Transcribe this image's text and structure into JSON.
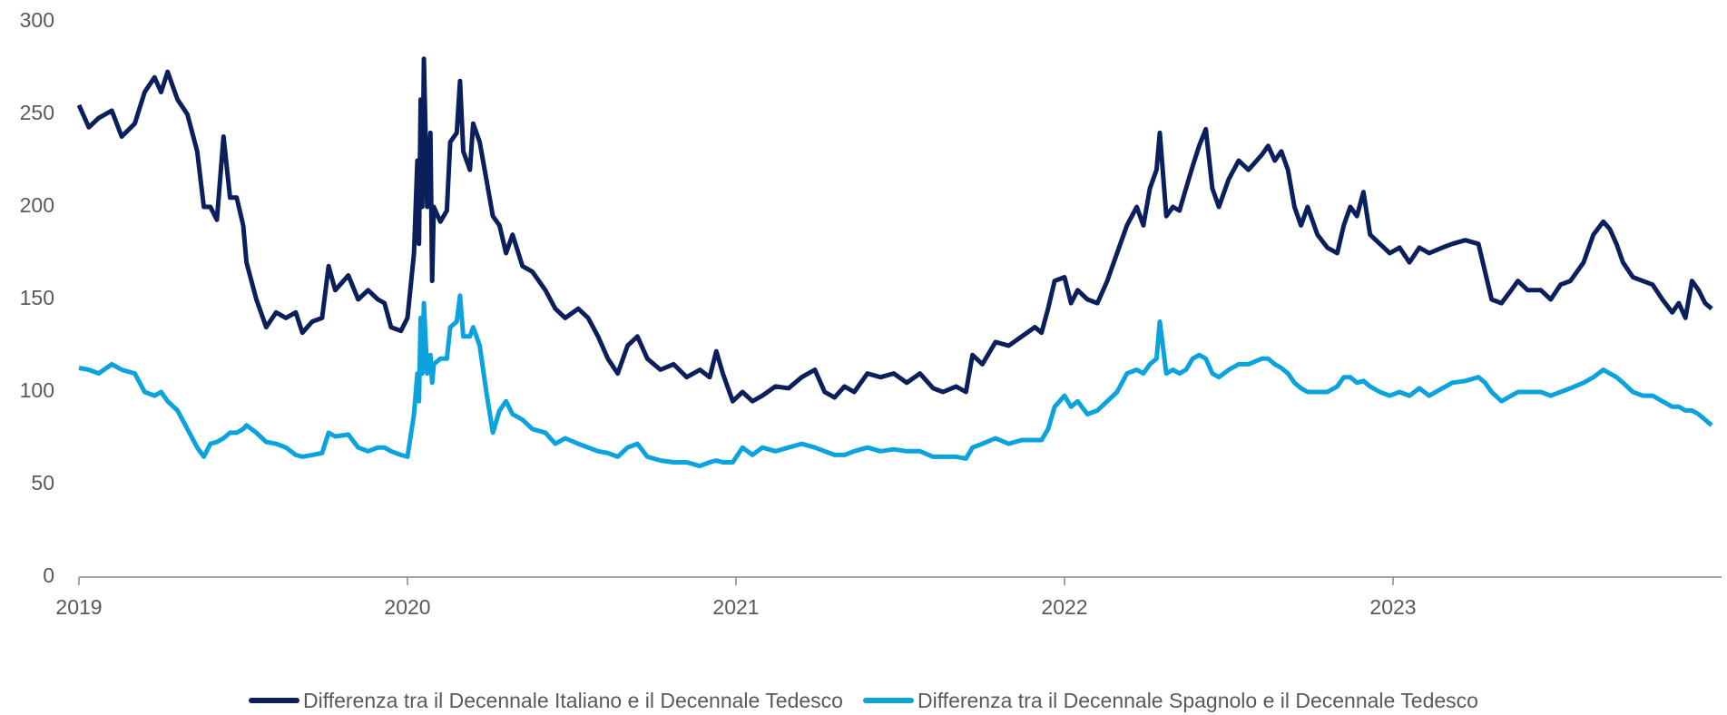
{
  "chart_data": {
    "type": "line",
    "x": [
      2019.0,
      2019.03,
      2019.06,
      2019.1,
      2019.13,
      2019.17,
      2019.2,
      2019.23,
      2019.25,
      2019.27,
      2019.3,
      2019.33,
      2019.36,
      2019.38,
      2019.4,
      2019.42,
      2019.44,
      2019.46,
      2019.48,
      2019.5,
      2019.51,
      2019.54,
      2019.57,
      2019.6,
      2019.63,
      2019.66,
      2019.68,
      2019.71,
      2019.74,
      2019.76,
      2019.78,
      2019.82,
      2019.85,
      2019.88,
      2019.91,
      2019.93,
      2019.95,
      2019.98,
      2020.0,
      2020.02,
      2020.03,
      2020.035,
      2020.04,
      2020.045,
      2020.05,
      2020.06,
      2020.07,
      2020.075,
      2020.08,
      2020.1,
      2020.12,
      2020.13,
      2020.15,
      2020.16,
      2020.17,
      2020.19,
      2020.2,
      2020.22,
      2020.24,
      2020.26,
      2020.28,
      2020.3,
      2020.32,
      2020.35,
      2020.38,
      2020.42,
      2020.45,
      2020.48,
      2020.52,
      2020.55,
      2020.58,
      2020.61,
      2020.64,
      2020.67,
      2020.7,
      2020.73,
      2020.77,
      2020.81,
      2020.85,
      2020.89,
      2020.92,
      2020.94,
      2020.96,
      2020.99,
      2021.02,
      2021.05,
      2021.08,
      2021.12,
      2021.16,
      2021.2,
      2021.24,
      2021.27,
      2021.3,
      2021.33,
      2021.36,
      2021.4,
      2021.44,
      2021.48,
      2021.52,
      2021.56,
      2021.6,
      2021.63,
      2021.67,
      2021.7,
      2021.72,
      2021.75,
      2021.79,
      2021.83,
      2021.87,
      2021.91,
      2021.93,
      2021.95,
      2021.97,
      2022.0,
      2022.02,
      2022.04,
      2022.07,
      2022.1,
      2022.13,
      2022.16,
      2022.19,
      2022.22,
      2022.24,
      2022.26,
      2022.28,
      2022.29,
      2022.31,
      2022.33,
      2022.35,
      2022.37,
      2022.39,
      2022.41,
      2022.43,
      2022.45,
      2022.47,
      2022.5,
      2022.53,
      2022.56,
      2022.6,
      2022.62,
      2022.64,
      2022.66,
      2022.68,
      2022.7,
      2022.72,
      2022.74,
      2022.77,
      2022.8,
      2022.83,
      2022.85,
      2022.87,
      2022.89,
      2022.91,
      2022.93,
      2022.96,
      2022.99,
      2023.02,
      2023.05,
      2023.08,
      2023.11,
      2023.15,
      2023.18,
      2023.22,
      2023.26,
      2023.28,
      2023.3,
      2023.33,
      2023.36,
      2023.38,
      2023.41,
      2023.45,
      2023.48,
      2023.51,
      2023.54,
      2023.58,
      2023.61,
      2023.64,
      2023.66,
      2023.68,
      2023.7,
      2023.73,
      2023.76,
      2023.79,
      2023.82,
      2023.85,
      2023.87,
      2023.89,
      2023.91,
      2023.93,
      2023.95,
      2023.97
    ],
    "series": [
      {
        "name": "Differenza tra il Decennale Italiano e il Decennale Tedesco",
        "color": "#0b1f5c",
        "values": [
          255,
          243,
          248,
          252,
          238,
          245,
          262,
          270,
          262,
          273,
          258,
          250,
          230,
          200,
          200,
          193,
          238,
          205,
          205,
          190,
          170,
          150,
          135,
          143,
          140,
          143,
          132,
          138,
          140,
          168,
          155,
          163,
          150,
          155,
          150,
          148,
          135,
          133,
          140,
          175,
          225,
          180,
          258,
          200,
          280,
          200,
          240,
          160,
          200,
          192,
          198,
          235,
          240,
          268,
          230,
          220,
          245,
          235,
          215,
          195,
          190,
          175,
          185,
          168,
          165,
          155,
          145,
          140,
          145,
          140,
          130,
          118,
          110,
          125,
          130,
          118,
          112,
          115,
          108,
          112,
          108,
          122,
          110,
          95,
          100,
          95,
          98,
          103,
          102,
          108,
          112,
          100,
          97,
          103,
          100,
          110,
          108,
          110,
          105,
          110,
          102,
          100,
          103,
          100,
          120,
          115,
          127,
          125,
          130,
          135,
          132,
          145,
          160,
          162,
          148,
          155,
          150,
          148,
          160,
          175,
          190,
          200,
          190,
          210,
          220,
          240,
          195,
          200,
          198,
          210,
          222,
          233,
          242,
          210,
          200,
          215,
          225,
          220,
          228,
          233,
          225,
          230,
          220,
          200,
          190,
          200,
          185,
          178,
          175,
          190,
          200,
          195,
          208,
          185,
          180,
          175,
          178,
          170,
          178,
          175,
          178,
          180,
          182,
          180,
          165,
          150,
          148,
          155,
          160,
          155,
          155,
          150,
          158,
          160,
          170,
          185,
          192,
          188,
          180,
          170,
          162,
          160,
          158,
          150,
          143,
          148,
          140,
          160,
          155,
          148,
          145
        ]
      },
      {
        "name": "Differenza tra il Decennale Spagnolo e il Decennale Tedesco",
        "color": "#0aa3de",
        "values": [
          113,
          112,
          110,
          115,
          112,
          110,
          100,
          98,
          100,
          95,
          90,
          80,
          70,
          65,
          72,
          73,
          75,
          78,
          78,
          80,
          82,
          78,
          73,
          72,
          70,
          66,
          65,
          66,
          67,
          78,
          76,
          77,
          70,
          68,
          70,
          70,
          68,
          66,
          65,
          88,
          110,
          95,
          140,
          110,
          148,
          110,
          120,
          105,
          115,
          118,
          118,
          135,
          138,
          152,
          130,
          130,
          135,
          125,
          100,
          78,
          90,
          95,
          88,
          85,
          80,
          78,
          72,
          75,
          72,
          70,
          68,
          67,
          65,
          70,
          72,
          65,
          63,
          62,
          62,
          60,
          62,
          63,
          62,
          62,
          70,
          66,
          70,
          68,
          70,
          72,
          70,
          68,
          66,
          66,
          68,
          70,
          68,
          69,
          68,
          68,
          65,
          65,
          65,
          64,
          70,
          72,
          75,
          72,
          74,
          74,
          74,
          80,
          92,
          98,
          92,
          95,
          88,
          90,
          95,
          100,
          110,
          112,
          110,
          115,
          118,
          138,
          110,
          112,
          110,
          112,
          118,
          120,
          118,
          110,
          108,
          112,
          115,
          115,
          118,
          118,
          115,
          113,
          110,
          105,
          102,
          100,
          100,
          100,
          103,
          108,
          108,
          105,
          106,
          103,
          100,
          98,
          100,
          98,
          102,
          98,
          102,
          105,
          106,
          108,
          105,
          100,
          95,
          98,
          100,
          100,
          100,
          98,
          100,
          102,
          105,
          108,
          112,
          110,
          108,
          105,
          100,
          98,
          98,
          95,
          92,
          92,
          90,
          90,
          88,
          85,
          82
        ]
      }
    ],
    "xlim": [
      2019,
      2024
    ],
    "xticks": [
      2019,
      2020,
      2021,
      2022,
      2023
    ],
    "ylim": [
      0,
      300
    ],
    "yticks": [
      0,
      50,
      100,
      150,
      200,
      250,
      300
    ],
    "grid": false,
    "legend": "bottom"
  }
}
